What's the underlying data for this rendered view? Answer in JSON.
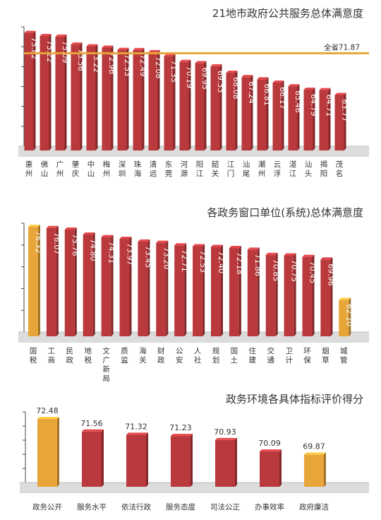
{
  "chart_data": [
    {
      "type": "bar",
      "title": "21地市政府公共服务总体满意度",
      "categories": [
        "惠州",
        "佛山",
        "广州",
        "肇庆",
        "中山",
        "梅州",
        "深圳",
        "珠海",
        "清远",
        "东莞",
        "河源",
        "阳江",
        "韶关",
        "江门",
        "汕尾",
        "潮州",
        "云浮",
        "湛江",
        "汕头",
        "揭阳",
        "茂名"
      ],
      "values": [
        75.82,
        75.22,
        75.09,
        73.56,
        73.22,
        72.96,
        72.53,
        72.49,
        72.08,
        71.35,
        70.19,
        69.95,
        69.33,
        68.08,
        67.24,
        66.81,
        66.17,
        65.46,
        64.79,
        64.71,
        63.77
      ],
      "value_labels": [
        "75.82",
        "75.22",
        "75.09",
        "73.56",
        "73.22",
        "72.96",
        "72.53",
        "72.49",
        "72.08",
        "71.35",
        "70.19",
        "69.95",
        "69.33",
        "68.08",
        "67.24",
        "66.81",
        "66.17",
        "65.46",
        "64.79",
        "64.71",
        "63.77"
      ],
      "reference_line": {
        "label": "全省71.87",
        "value": 71.87,
        "color": "#e8a53a"
      },
      "bar_color": "#b9393c",
      "ylim": [
        53,
        77
      ]
    },
    {
      "type": "bar",
      "title": "各政务窗口单位(系统)总体满意度",
      "categories": [
        "国税",
        "工商",
        "民政",
        "地税",
        "文广新局",
        "质监",
        "海关",
        "财政",
        "公安",
        "人社",
        "规划",
        "国土",
        "住建",
        "交通",
        "卫计",
        "环保",
        "烟草",
        "城管"
      ],
      "values": [
        76.32,
        76.07,
        75.76,
        74.8,
        74.31,
        73.97,
        73.45,
        73.2,
        72.71,
        72.53,
        72.4,
        72.18,
        71.86,
        70.85,
        70.75,
        70.45,
        69.96,
        62.1
      ],
      "value_labels": [
        "76.32",
        "76.07",
        "75.76",
        "74.80",
        "74.31",
        "73.97",
        "73.45",
        "73.20",
        "72.71",
        "72.53",
        "72.40",
        "72.18",
        "71.86",
        "70.85",
        "70.75",
        "70.45",
        "69.96",
        "62.10"
      ],
      "bar_color": "#b9393c",
      "highlight_color": "#e8a53a",
      "highlight": [
        "国税",
        "城管"
      ],
      "ylim": [
        55,
        77
      ]
    },
    {
      "type": "bar",
      "title": "政务环境各具体指标评价得分",
      "categories": [
        "政务公开",
        "服务水平",
        "依法行政",
        "服务态度",
        "司法公正",
        "办事效率",
        "政府廉洁"
      ],
      "values": [
        72.48,
        71.56,
        71.32,
        71.23,
        70.93,
        70.09,
        69.87
      ],
      "value_labels": [
        "72.48",
        "71.56",
        "71.32",
        "71.23",
        "70.93",
        "70.09",
        "69.87"
      ],
      "bar_color": "#b9393c",
      "highlight_color": "#e8a53a",
      "highlight": [
        "政务公开",
        "政府廉洁"
      ],
      "ylim": [
        67.5,
        73
      ]
    }
  ]
}
